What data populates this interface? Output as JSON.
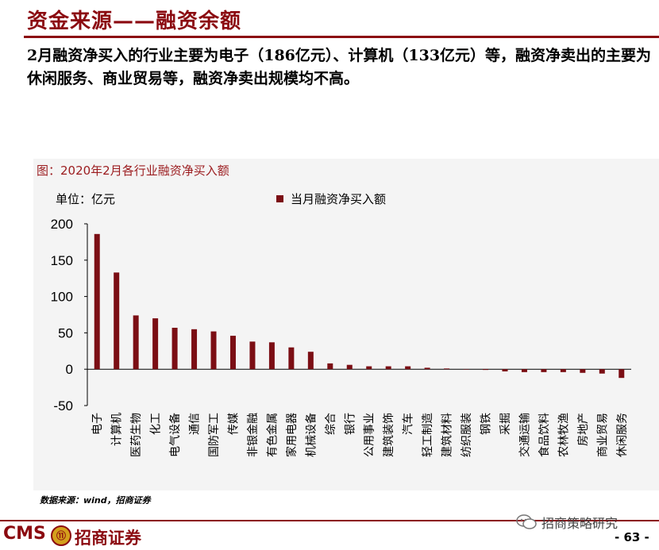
{
  "header": {
    "title": "资金来源——融资余额",
    "summary": "2月融资净买入的行业主要为电子（186亿元）、计算机（133亿元）等，融资净卖出的主要为休闲服务、商业贸易等，融资净卖出规模均不高。"
  },
  "figure": {
    "title": "图：2020年2月各行业融资净买入额",
    "unit": "单位：亿元",
    "source": "数据来源：wind，招商证券"
  },
  "chart_data": {
    "type": "bar",
    "categories": [
      "电子",
      "计算机",
      "医药生物",
      "化工",
      "电气设备",
      "通信",
      "国防军工",
      "传媒",
      "非银金融",
      "有色金属",
      "家用电器",
      "机械设备",
      "综合",
      "银行",
      "公用事业",
      "建筑装饰",
      "汽车",
      "轻工制造",
      "建筑材料",
      "纺织服装",
      "钢铁",
      "采掘",
      "交通运输",
      "食品饮料",
      "农林牧渔",
      "房地产",
      "商业贸易",
      "休闲服务"
    ],
    "series": [
      {
        "name": "当月融资净买入额",
        "values": [
          186,
          133,
          74,
          70,
          57,
          55,
          52,
          46,
          38,
          37,
          30,
          24,
          8,
          6,
          4,
          4,
          4,
          2,
          1,
          0,
          -1,
          -3,
          -4,
          -4,
          -4,
          -5,
          -6,
          -12
        ]
      }
    ],
    "yticks": [
      200,
      150,
      100,
      50,
      0,
      -50
    ],
    "ylim": [
      -50,
      200
    ],
    "color": "#7b0e14",
    "legend_position": "top"
  },
  "footer": {
    "cms": "CMS",
    "logo_glyph": "⑪",
    "brand": "招商证券",
    "wechat": "招商策略研究",
    "page": "- 63 -"
  }
}
